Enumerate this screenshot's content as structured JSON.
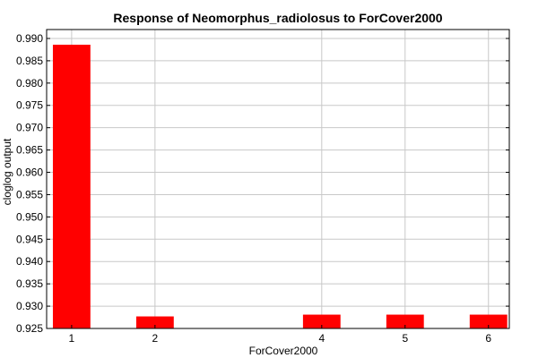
{
  "chart_data": {
    "type": "bar",
    "title": "Response of Neomorphus_radiolosus to ForCover2000",
    "xlabel": "ForCover2000",
    "ylabel": "cloglog output",
    "categories": [
      "1",
      "2",
      "4",
      "5",
      "6"
    ],
    "x": [
      1,
      2,
      4,
      5,
      6
    ],
    "values": [
      0.9886,
      0.9277,
      0.9281,
      0.9281,
      0.9281
    ],
    "xlim": [
      0.7,
      6.25
    ],
    "ylim": [
      0.925,
      0.992
    ],
    "yticks": [
      0.925,
      0.93,
      0.935,
      0.94,
      0.945,
      0.95,
      0.955,
      0.96,
      0.965,
      0.97,
      0.975,
      0.98,
      0.985,
      0.99
    ],
    "ytick_labels": [
      "0.925",
      "0.930",
      "0.935",
      "0.940",
      "0.945",
      "0.950",
      "0.955",
      "0.960",
      "0.965",
      "0.970",
      "0.975",
      "0.980",
      "0.985",
      "0.990"
    ],
    "xticks": [
      1,
      2,
      4,
      5,
      6
    ],
    "xtick_labels": [
      "1",
      "2",
      "4",
      "5",
      "6"
    ],
    "bar_width": 0.45,
    "grid": true,
    "bar_color": "#ff0000",
    "grid_color": "#c8c8c8",
    "axis_color": "#000000"
  }
}
